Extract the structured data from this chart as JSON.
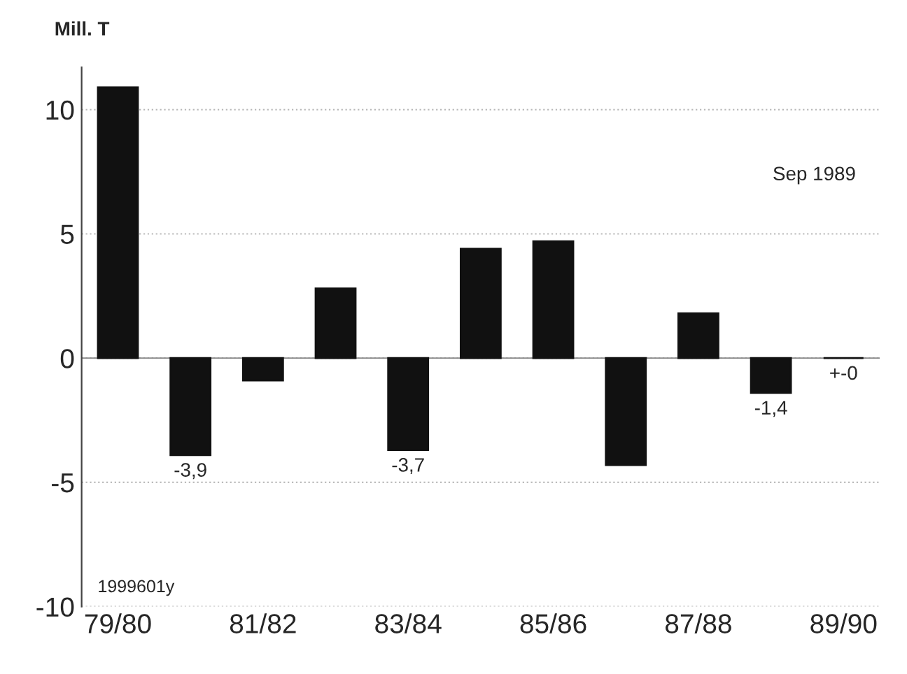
{
  "chart_data": {
    "type": "bar",
    "ylabel": "Mill. T",
    "categories": [
      "79/80",
      null,
      "81/82",
      null,
      "83/84",
      null,
      "85/86",
      null,
      "87/88",
      null,
      "89/90"
    ],
    "values": [
      10.9,
      -3.9,
      -0.9,
      2.8,
      -3.7,
      4.4,
      4.7,
      -4.3,
      1.8,
      -1.4,
      0
    ],
    "value_labels": [
      null,
      "-3,9",
      null,
      null,
      "-3,7",
      null,
      null,
      null,
      null,
      "-1,4",
      "+-0"
    ],
    "color": "#111111",
    "ylim": [
      -10,
      11.7
    ],
    "yticks": [
      -10,
      -5,
      0,
      5,
      10
    ],
    "grid": "y",
    "annotations": [
      "Sep 1989",
      "1999601y"
    ]
  }
}
